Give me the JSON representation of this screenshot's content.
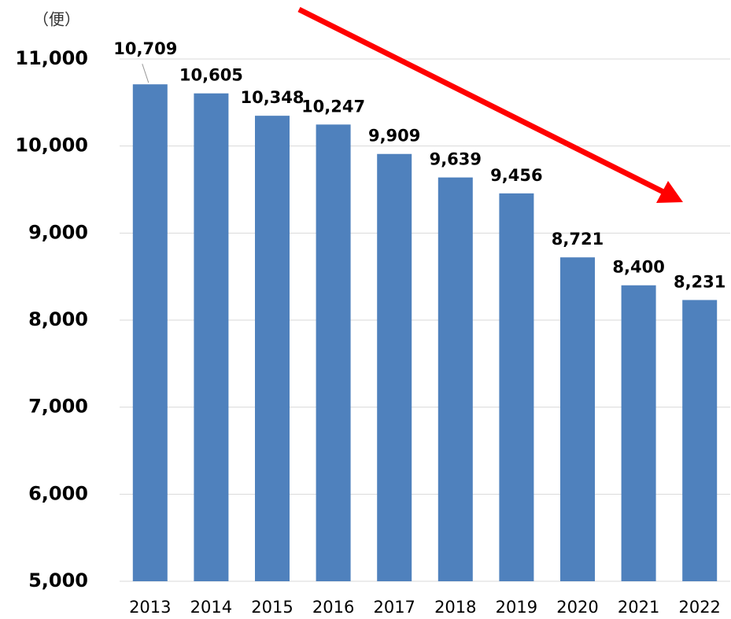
{
  "chart_data": {
    "type": "bar",
    "y_axis_label": "（便）",
    "categories": [
      "2013",
      "2014",
      "2015",
      "2016",
      "2017",
      "2018",
      "2019",
      "2020",
      "2021",
      "2022"
    ],
    "values": [
      10709,
      10605,
      10348,
      10247,
      9909,
      9639,
      9456,
      8721,
      8400,
      8231
    ],
    "value_labels": [
      "10,709",
      "10,605",
      "10,348",
      "10,247",
      "9,909",
      "9,639",
      "9,456",
      "8,721",
      "8,400",
      "8,231"
    ],
    "color": "#4f81bd",
    "ylim": [
      5000,
      11000
    ],
    "yticks": [
      {
        "value": 5000,
        "label": "5,000"
      },
      {
        "value": 6000,
        "label": "6,000"
      },
      {
        "value": 7000,
        "label": "7,000"
      },
      {
        "value": 8000,
        "label": "8,000"
      },
      {
        "value": 9000,
        "label": "9,000"
      },
      {
        "value": 10000,
        "label": "10,000"
      },
      {
        "value": 11000,
        "label": "11,000"
      }
    ],
    "grid": true
  }
}
